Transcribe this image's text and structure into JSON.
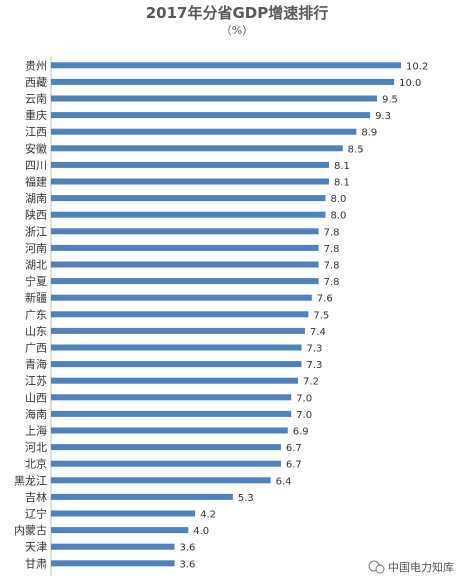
{
  "chart_data": {
    "type": "bar",
    "orientation": "horizontal",
    "title": "2017年分省GDP增速排行",
    "subtitle": "（%）",
    "categories": [
      "贵州",
      "西藏",
      "云南",
      "重庆",
      "江西",
      "安徽",
      "四川",
      "福建",
      "湖南",
      "陕西",
      "浙江",
      "河南",
      "湖北",
      "宁夏",
      "新疆",
      "广东",
      "山东",
      "广西",
      "青海",
      "江苏",
      "山西",
      "海南",
      "上海",
      "河北",
      "北京",
      "黑龙江",
      "吉林",
      "辽宁",
      "内蒙古",
      "天津",
      "甘肃"
    ],
    "values": [
      10.2,
      10.0,
      9.5,
      9.3,
      8.9,
      8.5,
      8.1,
      8.1,
      8.0,
      8.0,
      7.8,
      7.8,
      7.8,
      7.8,
      7.6,
      7.5,
      7.4,
      7.3,
      7.3,
      7.2,
      7.0,
      7.0,
      6.9,
      6.7,
      6.7,
      6.4,
      5.3,
      4.2,
      4.0,
      3.6,
      3.6
    ],
    "value_labels": [
      "10.2",
      "10.0",
      "9.5",
      "9.3",
      "8.9",
      "8.5",
      "8.1",
      "8.1",
      "8.0",
      "8.0",
      "7.8",
      "7.8",
      "7.8",
      "7.8",
      "7.6",
      "7.5",
      "7.4",
      "7.3",
      "7.3",
      "7.2",
      "7.0",
      "7.0",
      "6.9",
      "6.7",
      "6.7",
      "6.4",
      "5.3",
      "4.2",
      "4.0",
      "3.6",
      "3.6"
    ],
    "xlim": [
      0,
      10.2
    ],
    "grid": false,
    "bar_color": "#4f81bd"
  },
  "watermark": {
    "text": "中国电力知库",
    "icon": "wechat-icon"
  }
}
